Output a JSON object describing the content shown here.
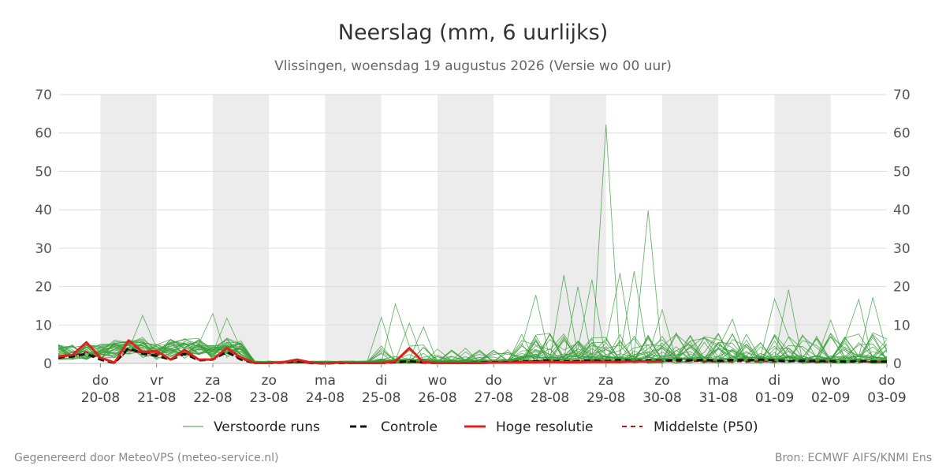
{
  "chart_data": {
    "type": "line",
    "title": "Neerslag (mm, 6 uurlijks)",
    "subtitle": "Vlissingen, woensdag 19 augustus 2026 (Versie wo 00 uur)",
    "ylim": [
      0,
      70
    ],
    "yticks": [
      0,
      10,
      20,
      30,
      40,
      50,
      60,
      70
    ],
    "x_range_days": [
      -0.75,
      14
    ],
    "x_ticks": [
      {
        "day": "do",
        "date": "20-08"
      },
      {
        "day": "vr",
        "date": "21-08"
      },
      {
        "day": "za",
        "date": "22-08"
      },
      {
        "day": "zo",
        "date": "23-08"
      },
      {
        "day": "ma",
        "date": "24-08"
      },
      {
        "day": "di",
        "date": "25-08"
      },
      {
        "day": "wo",
        "date": "26-08"
      },
      {
        "day": "do",
        "date": "27-08"
      },
      {
        "day": "vr",
        "date": "28-08"
      },
      {
        "day": "za",
        "date": "29-08"
      },
      {
        "day": "zo",
        "date": "30-08"
      },
      {
        "day": "ma",
        "date": "31-08"
      },
      {
        "day": "di",
        "date": "01-09"
      },
      {
        "day": "wo",
        "date": "02-09"
      },
      {
        "day": "do",
        "date": "03-09"
      }
    ],
    "weekend_shading_days": [
      [
        0,
        1
      ],
      [
        2,
        3
      ],
      [
        4,
        5
      ],
      [
        6,
        7
      ],
      [
        8,
        9
      ],
      [
        10,
        11
      ],
      [
        12,
        13
      ]
    ],
    "grid": true,
    "legend_position": "bottom",
    "colors": {
      "ensemble": "#3a9e3a",
      "controle": "#111111",
      "hoge_resolutie": "#e0201b",
      "p50": "#b01818",
      "shade": "#ececec",
      "grid": "#dddddd"
    },
    "series": [
      {
        "name": "Hoge resolutie",
        "x": [
          -0.75,
          -0.5,
          -0.25,
          0,
          0.25,
          0.5,
          0.75,
          1,
          1.25,
          1.5,
          1.75,
          2,
          2.25,
          2.5,
          2.75,
          3,
          3.25,
          3.5,
          3.75,
          4,
          4.25,
          4.5,
          4.75,
          5,
          5.25,
          5.5,
          5.75,
          6,
          6.25,
          6.5,
          6.75,
          7,
          7.25,
          7.5,
          7.75,
          8,
          8.25,
          8.5,
          8.75,
          9,
          9.25,
          9.5,
          9.75,
          10
        ],
        "y": [
          1.8,
          2.2,
          5.5,
          1.5,
          0.2,
          6.0,
          3.0,
          3.2,
          1.0,
          3.5,
          1.0,
          1.0,
          4.0,
          1.5,
          0.1,
          0.1,
          0.3,
          1.0,
          0.2,
          0,
          0.2,
          0.1,
          0.1,
          0.1,
          0.5,
          4.0,
          0.3,
          0.1,
          0.1,
          0.1,
          0.1,
          0.2,
          0.2,
          0.3,
          0.3,
          0.4,
          0.3,
          0.3,
          0.4,
          0.4,
          0.4,
          0.5,
          0.5,
          0.5
        ]
      },
      {
        "name": "Controle",
        "x": [
          -0.75,
          -0.5,
          -0.25,
          0,
          0.25,
          0.5,
          0.75,
          1,
          1.25,
          1.5,
          1.75,
          2,
          2.25,
          2.5,
          2.75,
          3,
          3.25,
          3.5,
          3.75,
          4,
          4.25,
          4.5,
          4.75,
          5,
          5.25,
          5.5,
          5.75,
          6,
          6.25,
          6.5,
          6.75,
          7,
          7.25,
          7.5,
          7.75,
          8,
          8.25,
          8.5,
          8.75,
          9,
          9.25,
          9.5,
          9.75,
          10,
          10.25,
          10.5,
          10.75,
          11,
          11.25,
          11.5,
          11.75,
          12,
          12.25,
          12.5,
          12.75,
          13,
          13.25,
          13.5,
          13.75,
          14
        ],
        "y": [
          1.5,
          1.8,
          2.5,
          1.0,
          0.1,
          4.0,
          2.5,
          2.0,
          1.0,
          2.5,
          0.8,
          1.0,
          3.0,
          1.0,
          0.1,
          0.1,
          0.2,
          0.6,
          0.1,
          0,
          0.1,
          0.1,
          0.1,
          0.1,
          0.3,
          0.6,
          0.2,
          0.1,
          0.1,
          0.1,
          0.2,
          0.3,
          0.3,
          0.5,
          0.6,
          0.8,
          0.5,
          0.6,
          0.8,
          0.6,
          0.9,
          0.6,
          0.8,
          0.7,
          0.9,
          0.8,
          0.9,
          0.7,
          0.9,
          0.8,
          1.0,
          0.8,
          0.6,
          0.7,
          0.6,
          0.6,
          0.5,
          0.6,
          0.5,
          0.5
        ]
      },
      {
        "name": "Middelste (P50)",
        "x": [
          -0.75,
          -0.5,
          -0.25,
          0,
          0.25,
          0.5,
          0.75,
          1,
          1.25,
          1.5,
          1.75,
          2,
          2.25,
          2.5,
          2.75,
          3,
          3.25,
          3.5,
          3.75,
          4,
          4.25,
          4.5,
          4.75,
          5,
          5.25,
          5.5,
          5.75,
          6,
          6.25,
          6.5,
          6.75,
          7,
          7.25,
          7.5,
          7.75,
          8,
          8.25,
          8.5,
          8.75,
          9,
          9.25,
          9.5,
          9.75,
          10,
          10.25,
          10.5,
          10.75,
          11,
          11.25,
          11.5,
          11.75,
          12,
          12.25,
          12.5,
          12.75,
          13,
          13.25,
          13.5,
          13.75,
          14
        ],
        "y": [
          1.8,
          2.0,
          3.0,
          1.2,
          0.2,
          3.5,
          2.8,
          2.5,
          1.2,
          2.8,
          1.0,
          1.2,
          2.8,
          1.2,
          0.1,
          0.1,
          0.1,
          0.3,
          0.1,
          0,
          0.1,
          0.1,
          0.1,
          0.1,
          0.2,
          0.4,
          0.2,
          0.1,
          0.1,
          0.1,
          0.2,
          0.3,
          0.4,
          0.5,
          0.6,
          0.7,
          0.6,
          0.7,
          0.6,
          0.7,
          0.6,
          0.6,
          0.5,
          0.6,
          0.5,
          0.6,
          0.5,
          0.5,
          0.5,
          0.5,
          0.5,
          0.5,
          0.5,
          0.5,
          0.4,
          0.4,
          0.4,
          0.4,
          0.4,
          0.4
        ]
      }
    ],
    "ensemble_peaks": [
      {
        "x": 0.75,
        "y": 12.5
      },
      {
        "x": 2.0,
        "y": 13.0
      },
      {
        "x": 2.25,
        "y": 11.8
      },
      {
        "x": 5.0,
        "y": 12.0
      },
      {
        "x": 5.25,
        "y": 15.5
      },
      {
        "x": 5.5,
        "y": 10.5
      },
      {
        "x": 5.75,
        "y": 9.5
      },
      {
        "x": 7.75,
        "y": 17.8
      },
      {
        "x": 8.25,
        "y": 23.0
      },
      {
        "x": 8.5,
        "y": 20.0
      },
      {
        "x": 8.75,
        "y": 21.8
      },
      {
        "x": 9.0,
        "y": 62.2
      },
      {
        "x": 9.25,
        "y": 23.5
      },
      {
        "x": 9.5,
        "y": 24.0
      },
      {
        "x": 9.75,
        "y": 39.8
      },
      {
        "x": 10.0,
        "y": 14.0
      },
      {
        "x": 11.25,
        "y": 11.5
      },
      {
        "x": 12.0,
        "y": 16.8
      },
      {
        "x": 12.25,
        "y": 19.2
      },
      {
        "x": 13.0,
        "y": 11.3
      },
      {
        "x": 13.5,
        "y": 16.7
      },
      {
        "x": 13.75,
        "y": 17.2
      }
    ]
  },
  "legend": {
    "ensemble": "Verstoorde runs",
    "controle": "Controle",
    "hoge_resolutie": "Hoge resolutie",
    "p50": "Middelste (P50)"
  },
  "footer": {
    "left": "Gegenereerd door MeteoVPS (meteo-service.nl)",
    "right": "Bron: ECMWF AIFS/KNMI Ens"
  }
}
